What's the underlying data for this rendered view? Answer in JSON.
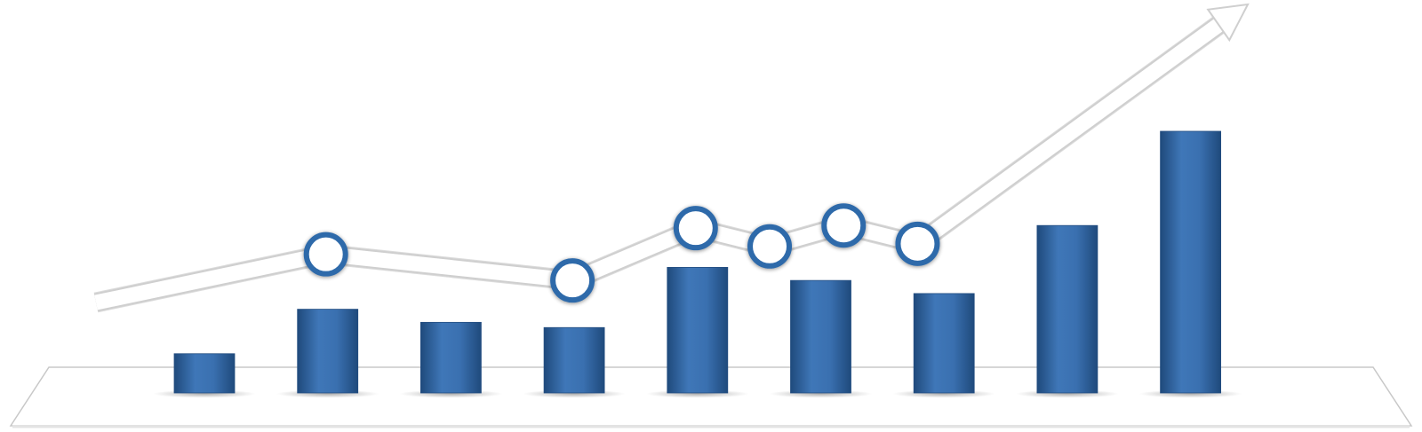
{
  "chart_data": {
    "type": "bar",
    "title": "",
    "xlabel": "",
    "ylabel": "",
    "grid": false,
    "legend": "none",
    "ylim": [
      0,
      10
    ],
    "categories": [
      "",
      "",
      "",
      "",
      "",
      "",
      "",
      "",
      ""
    ],
    "values": [
      1.5,
      3.2,
      2.7,
      2.5,
      4.8,
      4.3,
      3.8,
      6.4,
      10.0
    ],
    "trend_line": {
      "shape": "line-with-arrow",
      "point_bar_positions": [
        1,
        3,
        4,
        4.6,
        5.2,
        5.8
      ],
      "point_values": [
        5.3,
        4.3,
        6.3,
        5.6,
        6.4,
        5.7
      ]
    },
    "colors": {
      "bar_top": "#2f5f98",
      "bar_mid": "#3d73b4",
      "bar_bottom": "#234d80",
      "platform_fill": "#ffffff",
      "platform_edge": "#c9c9c9",
      "trend_fill": "#ffffff",
      "trend_edge": "#cfcfcf",
      "marker_ring": "#2f6aaa",
      "marker_fill": "#ffffff"
    }
  }
}
